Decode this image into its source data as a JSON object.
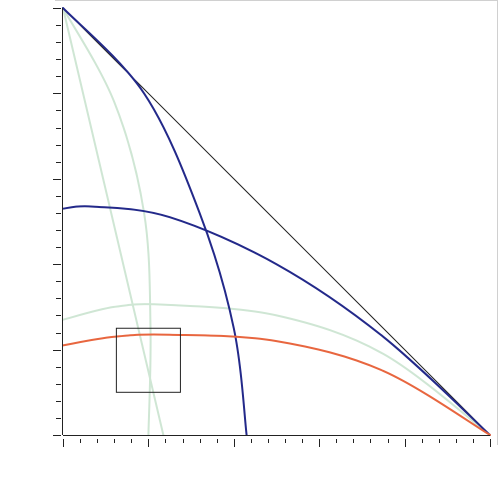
{
  "chart_data": {
    "type": "line",
    "title": "",
    "xlabel": "",
    "ylabel": "",
    "xlim": [
      0,
      1
    ],
    "ylim": [
      0,
      1
    ],
    "grid": false,
    "x_ticks": {
      "major_step": 0.2,
      "minor_step": 0.04
    },
    "y_ticks": {
      "major_step": 0.2,
      "minor_step": 0.04
    },
    "colors": {
      "frame": "#222222",
      "navy": "#23298a",
      "orange": "#e8663f",
      "light_green": "#cfe6d4",
      "edge": "#d0d0d0"
    },
    "series": [
      {
        "role": "diagonal",
        "color": "#222222",
        "x": [
          0,
          1
        ],
        "y": [
          1,
          0
        ]
      },
      {
        "role": "navy-arc-vertical",
        "color": "#23298a",
        "x": [
          0,
          0.19,
          0.32,
          0.4,
          0.43
        ],
        "y": [
          1,
          0.8,
          0.52,
          0.25,
          0
        ]
      },
      {
        "role": "navy-arc-horizontal",
        "color": "#23298a",
        "x": [
          0,
          0.07,
          0.25,
          0.5,
          0.75,
          1
        ],
        "y": [
          0.53,
          0.535,
          0.51,
          0.4,
          0.23,
          0
        ]
      },
      {
        "role": "orange-arc",
        "color": "#e8663f",
        "x": [
          0,
          0.12,
          0.25,
          0.5,
          0.75,
          1
        ],
        "y": [
          0.21,
          0.23,
          0.235,
          0.22,
          0.15,
          0
        ]
      },
      {
        "role": "green-arc-horizontal",
        "color": "#cfe6d4",
        "x": [
          0,
          0.12,
          0.24,
          0.5,
          0.75,
          1
        ],
        "y": [
          0.27,
          0.3,
          0.305,
          0.28,
          0.19,
          0
        ]
      },
      {
        "role": "green-arc-vertical",
        "color": "#cfe6d4",
        "x": [
          0,
          0.12,
          0.19,
          0.205,
          0.2
        ],
        "y": [
          1,
          0.78,
          0.52,
          0.25,
          0
        ]
      },
      {
        "role": "green-line",
        "color": "#cfe6d4",
        "x": [
          0,
          0.235
        ],
        "y": [
          1,
          0
        ]
      }
    ],
    "rectangle": {
      "x": [
        0.125,
        0.275
      ],
      "y": [
        0.1,
        0.25
      ],
      "color": "#222222"
    }
  }
}
